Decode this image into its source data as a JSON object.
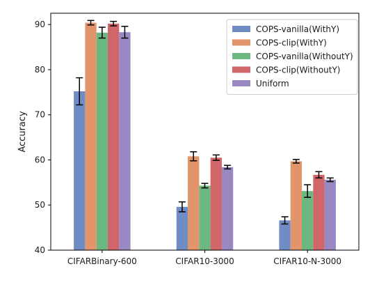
{
  "chart_data": {
    "type": "bar",
    "title": "",
    "xlabel": "",
    "ylabel": "Accuracy",
    "ylim": [
      40,
      92.5
    ],
    "yticks": [
      40,
      50,
      60,
      70,
      80,
      90
    ],
    "grid": false,
    "legend_position": "top-right",
    "error_bars": true,
    "categories": [
      "CIFARBinary-600",
      "CIFAR10-3000",
      "CIFAR10-N-3000"
    ],
    "series": [
      {
        "name": "COPS-vanilla(WithY)",
        "color": "#6f8cc5",
        "values": [
          75.2,
          49.6,
          46.6
        ],
        "errors": [
          3.0,
          1.1,
          0.8
        ]
      },
      {
        "name": "COPS-clip(WithY)",
        "color": "#e2946a",
        "values": [
          90.4,
          60.8,
          59.7
        ],
        "errors": [
          0.5,
          1.0,
          0.4
        ]
      },
      {
        "name": "COPS-vanilla(WithoutY)",
        "color": "#6cb880",
        "values": [
          88.2,
          54.3,
          53.1
        ],
        "errors": [
          1.2,
          0.5,
          1.4
        ]
      },
      {
        "name": "COPS-clip(WithoutY)",
        "color": "#d1666a",
        "values": [
          90.2,
          60.5,
          56.7
        ],
        "errors": [
          0.5,
          0.6,
          0.7
        ]
      },
      {
        "name": "Uniform",
        "color": "#9a88c3",
        "values": [
          88.3,
          58.4,
          55.6
        ],
        "errors": [
          1.3,
          0.4,
          0.4
        ]
      }
    ]
  }
}
